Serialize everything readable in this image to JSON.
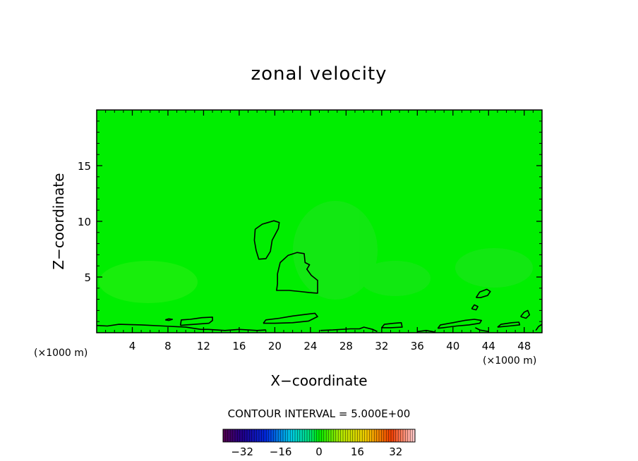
{
  "chart_data": {
    "type": "contour",
    "title": "zonal velocity",
    "xlabel": "X−coordinate",
    "ylabel": "Z−coordinate",
    "x_unit_left": "(×1000 m)",
    "x_unit_right": "(×1000 m)",
    "xlim": [
      0,
      50
    ],
    "ylim": [
      0,
      20
    ],
    "xticks": [
      4,
      8,
      12,
      16,
      20,
      24,
      28,
      32,
      36,
      40,
      44,
      48
    ],
    "xtick_labels": [
      "4",
      "8",
      "12",
      "16",
      "20",
      "24",
      "28",
      "32",
      "36",
      "40",
      "44",
      "48"
    ],
    "yticks": [
      5,
      10,
      15
    ],
    "ytick_labels": [
      "5",
      "10",
      "15"
    ],
    "field_color": "#00ee00",
    "contour_color": "#000000",
    "contour_interval_label": "CONTOUR INTERVAL = 5.000E+00",
    "colorbar": {
      "range": [
        -40,
        40
      ],
      "ticks": [
        -32,
        -16,
        0,
        16,
        32
      ],
      "tick_labels": [
        "−32",
        "−16",
        "0",
        "16",
        "32"
      ]
    },
    "contours": [
      [
        [
          17.8,
          9.3
        ],
        [
          18.6,
          9.75
        ],
        [
          19.9,
          10.05
        ],
        [
          20.5,
          9.9
        ],
        [
          20.4,
          9.35
        ],
        [
          19.7,
          8.3
        ],
        [
          19.5,
          7.3
        ],
        [
          19.0,
          6.65
        ],
        [
          18.2,
          6.6
        ],
        [
          17.9,
          7.4
        ],
        [
          17.7,
          8.3
        ],
        [
          17.8,
          9.3
        ]
      ],
      [
        [
          20.3,
          5.3
        ],
        [
          20.6,
          6.3
        ],
        [
          21.5,
          6.95
        ],
        [
          22.5,
          7.2
        ],
        [
          23.3,
          7.1
        ],
        [
          23.4,
          6.3
        ],
        [
          23.9,
          6.1
        ],
        [
          23.6,
          5.7
        ],
        [
          24.1,
          5.15
        ],
        [
          24.8,
          4.7
        ],
        [
          24.8,
          3.55
        ],
        [
          23.9,
          3.6
        ],
        [
          22.8,
          3.7
        ],
        [
          21.6,
          3.8
        ],
        [
          20.2,
          3.8
        ],
        [
          20.3,
          4.4
        ],
        [
          20.3,
          5.3
        ]
      ],
      [
        [
          0,
          0.65
        ],
        [
          1.2,
          0.6
        ],
        [
          2.5,
          0.75
        ],
        [
          5.0,
          0.7
        ],
        [
          7.5,
          0.6
        ],
        [
          10.0,
          0.5
        ],
        [
          11.7,
          0.3
        ],
        [
          12.5,
          0.3
        ],
        [
          14.4,
          0.2
        ],
        [
          16.0,
          0.3
        ],
        [
          18.0,
          0.2
        ],
        [
          19.0,
          0.25
        ]
      ],
      [
        [
          9.4,
          0.65
        ],
        [
          9.5,
          1.15
        ],
        [
          10.5,
          1.2
        ],
        [
          11.8,
          1.35
        ],
        [
          13.0,
          1.4
        ],
        [
          13.0,
          1.1
        ],
        [
          12.6,
          0.85
        ],
        [
          11.0,
          0.75
        ],
        [
          10.0,
          0.7
        ],
        [
          9.4,
          0.65
        ]
      ],
      [
        [
          18.7,
          0.85
        ],
        [
          19.0,
          1.15
        ],
        [
          20.5,
          1.3
        ],
        [
          22.0,
          1.5
        ],
        [
          23.5,
          1.65
        ],
        [
          24.5,
          1.75
        ],
        [
          24.8,
          1.45
        ],
        [
          23.8,
          1.05
        ],
        [
          22.0,
          0.9
        ],
        [
          20.0,
          0.85
        ],
        [
          18.7,
          0.85
        ]
      ],
      [
        [
          25.1,
          0.2
        ],
        [
          26.5,
          0.25
        ],
        [
          28.5,
          0.35
        ],
        [
          29.5,
          0.35
        ],
        [
          30.0,
          0.5
        ],
        [
          31.0,
          0.3
        ],
        [
          31.5,
          0.1
        ]
      ],
      [
        [
          32.0,
          0.45
        ],
        [
          32.3,
          0.75
        ],
        [
          33.4,
          0.85
        ],
        [
          34.2,
          0.9
        ],
        [
          34.3,
          0.5
        ],
        [
          33.0,
          0.45
        ],
        [
          32.0,
          0.45
        ]
      ],
      [
        [
          36.0,
          0.1
        ],
        [
          37.0,
          0.2
        ],
        [
          38.0,
          0.05
        ]
      ],
      [
        [
          38.3,
          0.4
        ],
        [
          38.6,
          0.7
        ],
        [
          40.0,
          0.9
        ],
        [
          41.3,
          1.1
        ],
        [
          42.4,
          1.2
        ],
        [
          43.2,
          1.1
        ],
        [
          43.0,
          0.85
        ],
        [
          41.8,
          0.7
        ],
        [
          40.4,
          0.6
        ],
        [
          38.9,
          0.45
        ],
        [
          38.3,
          0.4
        ]
      ],
      [
        [
          42.5,
          0.45
        ],
        [
          43.0,
          0.25
        ],
        [
          44.0,
          0.1
        ]
      ],
      [
        [
          45.0,
          0.5
        ],
        [
          45.4,
          0.75
        ],
        [
          46.6,
          0.9
        ],
        [
          47.4,
          0.95
        ],
        [
          47.5,
          0.7
        ],
        [
          46.3,
          0.6
        ],
        [
          45.0,
          0.5
        ]
      ],
      [
        [
          47.6,
          1.45
        ],
        [
          48.0,
          1.85
        ],
        [
          48.4,
          2.0
        ],
        [
          48.6,
          1.6
        ],
        [
          48.2,
          1.3
        ],
        [
          47.6,
          1.45
        ]
      ],
      [
        [
          42.6,
          3.15
        ],
        [
          43.0,
          3.65
        ],
        [
          43.8,
          3.9
        ],
        [
          44.2,
          3.7
        ],
        [
          43.9,
          3.35
        ],
        [
          43.1,
          3.15
        ],
        [
          42.6,
          3.15
        ]
      ],
      [
        [
          42.1,
          2.15
        ],
        [
          42.4,
          2.5
        ],
        [
          42.8,
          2.35
        ],
        [
          42.6,
          2.05
        ],
        [
          42.1,
          2.15
        ]
      ],
      [
        [
          7.7,
          1.15
        ],
        [
          8.1,
          1.25
        ],
        [
          8.5,
          1.2
        ],
        [
          8.1,
          1.1
        ],
        [
          7.7,
          1.15
        ]
      ],
      [
        [
          49.3,
          0.2
        ],
        [
          49.6,
          0.55
        ],
        [
          50.0,
          0.75
        ]
      ]
    ]
  }
}
